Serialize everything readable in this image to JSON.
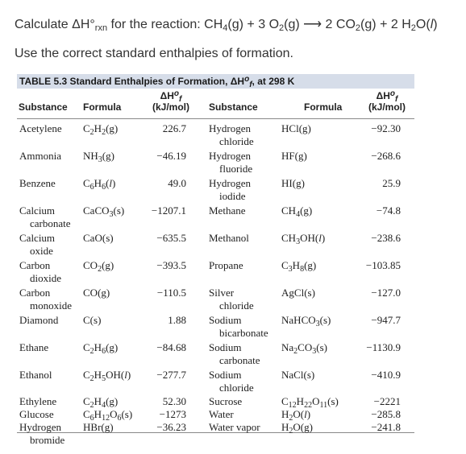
{
  "question": {
    "prefix": "Calculate ΔH°",
    "sub": "rxn",
    "middle": " for the reaction: C",
    "reaction_rest": "H4(g) + 3 O2(g) ⟶ 2 CO2(g) + 2 H2O(l)"
  },
  "instruction": "Use the correct standard enthalpies of formation.",
  "table": {
    "caption_prefix": "TABLE 5.3  Standard Enthalpies of Formation, ΔH",
    "caption_suffix": ", at 298 K",
    "headers": {
      "substance": "Substance",
      "formula": "Formula",
      "dh": "ΔH",
      "units": "(kJ/mol)"
    },
    "left": [
      {
        "name": "Acetylene",
        "name2": "",
        "formula": "C2H2(g)",
        "value": "226.7"
      },
      {
        "name": "Ammonia",
        "name2": "",
        "formula": "NH3(g)",
        "value": "−46.19"
      },
      {
        "name": "Benzene",
        "name2": "",
        "formula": "C6H6(l)",
        "value": "49.0"
      },
      {
        "name": "Calcium",
        "name2": "carbonate",
        "formula": "CaCO3(s)",
        "value": "−1207.1"
      },
      {
        "name": "Calcium",
        "name2": "oxide",
        "formula": "CaO(s)",
        "value": "−635.5"
      },
      {
        "name": "Carbon",
        "name2": "dioxide",
        "formula": "CO2(g)",
        "value": "−393.5"
      },
      {
        "name": "Carbon",
        "name2": "monoxide",
        "formula": "CO(g)",
        "value": "−110.5"
      },
      {
        "name": "Diamond",
        "name2": "",
        "formula": "C(s)",
        "value": "1.88"
      },
      {
        "name": "Ethane",
        "name2": "",
        "formula": "C2H6(g)",
        "value": "−84.68"
      },
      {
        "name": "Ethanol",
        "name2": "",
        "formula": "C2H5OH(l)",
        "value": "−277.7"
      },
      {
        "name": "Ethylene",
        "name2": "",
        "formula": "C2H4(g)",
        "value": "52.30"
      },
      {
        "name": "Glucose",
        "name2": "",
        "formula": "C6H12O6(s)",
        "value": "−1273"
      },
      {
        "name": "Hydrogen",
        "name2": "bromide",
        "formula": "HBr(g)",
        "value": "−36.23"
      }
    ],
    "right": [
      {
        "name": "Hydrogen",
        "name2": "chloride",
        "formula": "HCl(g)",
        "value": "−92.30"
      },
      {
        "name": "Hydrogen",
        "name2": "fluoride",
        "formula": "HF(g)",
        "value": "−268.6"
      },
      {
        "name": "Hydrogen",
        "name2": "iodide",
        "formula": "HI(g)",
        "value": "25.9"
      },
      {
        "name": "Methane",
        "name2": "",
        "formula": "CH4(g)",
        "value": "−74.8"
      },
      {
        "name": "Methanol",
        "name2": "",
        "formula": "CH3OH(l)",
        "value": "−238.6"
      },
      {
        "name": "Propane",
        "name2": "",
        "formula": "C3H8(g)",
        "value": "−103.85"
      },
      {
        "name": "Silver",
        "name2": "chloride",
        "formula": "AgCl(s)",
        "value": "−127.0"
      },
      {
        "name": "Sodium",
        "name2": "bicarbonate",
        "formula": "NaHCO3(s)",
        "value": "−947.7"
      },
      {
        "name": "Sodium",
        "name2": "carbonate",
        "formula": "Na2CO3(s)",
        "value": "−1130.9"
      },
      {
        "name": "Sodium",
        "name2": "chloride",
        "formula": "NaCl(s)",
        "value": "−410.9"
      },
      {
        "name": "Sucrose",
        "name2": "",
        "formula": "C12H22O11(s)",
        "value": "−2221"
      },
      {
        "name": "Water",
        "name2": "",
        "formula": "H2O(l)",
        "value": "−285.8"
      },
      {
        "name": "Water vapor",
        "name2": "",
        "formula": "H2O(g)",
        "value": "−241.8"
      }
    ]
  }
}
